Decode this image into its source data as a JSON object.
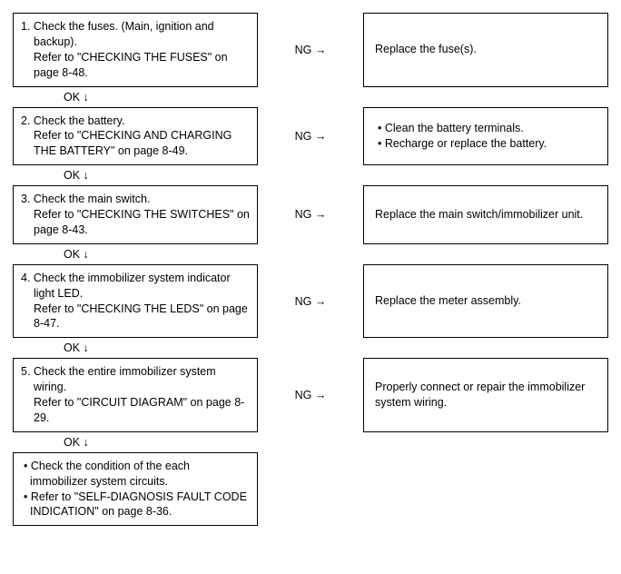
{
  "labels": {
    "ng": "NG",
    "ok": "OK",
    "arrow_right": "→",
    "arrow_down": "↓"
  },
  "steps": [
    {
      "num": "1.",
      "lines": [
        "Check the fuses. (Main, ignition and backup).",
        "Refer to \"CHECKING THE FUSES\" on page 8-48."
      ],
      "result_lines": [
        "Replace the fuse(s)."
      ],
      "result_bulleted": false
    },
    {
      "num": "2.",
      "lines": [
        "Check the battery.",
        "Refer to \"CHECKING AND CHARGING THE BATTERY\" on page 8-49."
      ],
      "result_lines": [
        "Clean the battery terminals.",
        "Recharge or replace the battery."
      ],
      "result_bulleted": true
    },
    {
      "num": "3.",
      "lines": [
        "Check the main switch.",
        "Refer to \"CHECKING THE SWITCHES\" on page 8-43."
      ],
      "result_lines": [
        "Replace the main switch/immobilizer unit."
      ],
      "result_bulleted": false
    },
    {
      "num": "4.",
      "lines": [
        "Check the immobilizer system indicator light LED.",
        "Refer to \"CHECKING THE LEDS\" on page 8-47."
      ],
      "result_lines": [
        "Replace the meter assembly."
      ],
      "result_bulleted": false
    },
    {
      "num": "5.",
      "lines": [
        "Check the entire immobilizer system wiring.",
        "Refer to \"CIRCUIT DIAGRAM\" on page 8-29."
      ],
      "result_lines": [
        "Properly connect or repair the immobilizer system wiring."
      ],
      "result_bulleted": false
    }
  ],
  "final": {
    "lines": [
      "Check the condition of the each immobilizer system circuits.",
      "Refer to \"SELF-DIAGNOSIS FAULT CODE INDICATION\" on page 8-36."
    ]
  }
}
